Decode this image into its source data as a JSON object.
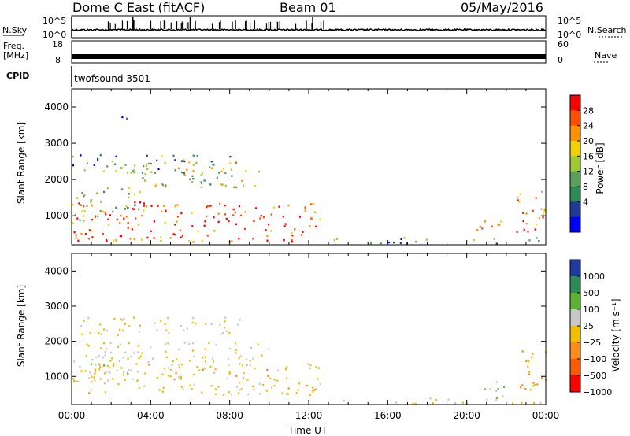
{
  "header": {
    "radar": "Dome C East (fitACF)",
    "beam": "Beam 01",
    "date": "05/May/2016"
  },
  "strip_labels": {
    "nsky": "N.Sky",
    "nsky_hi": "10^5",
    "nsky_lo": "10^0",
    "nsearch": "N.Search",
    "nsearch_hi": "10^5",
    "nsearch_lo": "10^0",
    "freq_line1": "Freq.",
    "freq_line2": "[MHz]",
    "freq_hi": "18",
    "freq_lo": "8",
    "nave": "Nave",
    "nave_hi": "60",
    "nave_lo": "0",
    "cpid": "CPID",
    "cpid_name": "twofsound 3501"
  },
  "panels": {
    "power": {
      "ylabel": "Slant Range [km]",
      "cbar_label": "Power [dB]",
      "cbar_ticks": [
        "28",
        "24",
        "20",
        "16",
        "12",
        "8",
        "4"
      ]
    },
    "velocity": {
      "ylabel": "Slant Range [km]",
      "cbar_label": "Velocity [m s⁻¹]",
      "cbar_ticks": [
        "1000",
        "500",
        "100",
        "25",
        "−25",
        "−100",
        "−500",
        "−1000"
      ]
    }
  },
  "xaxis": {
    "label": "Time UT",
    "ticks": [
      "00:00",
      "04:00",
      "08:00",
      "12:00",
      "16:00",
      "20:00",
      "00:00"
    ]
  },
  "chart_data": [
    {
      "type": "heatmap",
      "title": "Power",
      "x_unit": "hours UT",
      "xlim": [
        0,
        24
      ],
      "ylim": [
        200,
        4500
      ],
      "yticks": [
        1000,
        2000,
        3000,
        4000
      ],
      "ylabel": "Slant Range [km]",
      "colorbar": {
        "label": "Power [dB]",
        "range": [
          0,
          30
        ],
        "ticks": [
          4,
          8,
          12,
          16,
          20,
          24,
          28
        ]
      },
      "colors": [
        "#0000ff",
        "#1e3c96",
        "#2e8b57",
        "#5aa05a",
        "#a0c832",
        "#f0d000",
        "#ff9000",
        "#ff5000",
        "#ff0000"
      ],
      "regions": [
        {
          "t0": 0.0,
          "t1": 12.6,
          "r0": 300,
          "r1": 1400,
          "level": 26
        },
        {
          "t0": 0.0,
          "t1": 3.5,
          "r0": 900,
          "r1": 1800,
          "level": 14
        },
        {
          "t0": 0.0,
          "t1": 8.5,
          "r0": 2200,
          "r1": 2700,
          "level": 10
        },
        {
          "t0": 3.0,
          "t1": 9.5,
          "r0": 1800,
          "r1": 2500,
          "level": 16
        },
        {
          "t0": 2.5,
          "t1": 3.0,
          "r0": 3600,
          "r1": 4000,
          "level": 8
        },
        {
          "t0": 20.5,
          "t1": 22.0,
          "r0": 400,
          "r1": 900,
          "level": 18
        },
        {
          "t0": 22.5,
          "t1": 24.0,
          "r0": 500,
          "r1": 1800,
          "level": 22
        },
        {
          "t0": 12.5,
          "t1": 24.0,
          "r0": 250,
          "r1": 420,
          "level": 10
        }
      ]
    },
    {
      "type": "heatmap",
      "title": "Velocity",
      "x_unit": "hours UT",
      "xlim": [
        0,
        24
      ],
      "ylim": [
        200,
        4500
      ],
      "yticks": [
        1000,
        2000,
        3000,
        4000
      ],
      "ylabel": "Slant Range [km]",
      "colorbar": {
        "label": "Velocity [m s⁻¹]",
        "range": [
          -1200,
          1200
        ],
        "ticks": [
          1000,
          500,
          100,
          25,
          -25,
          -100,
          -500,
          -1000
        ]
      },
      "colors": [
        "#1e3ca0",
        "#2e8b57",
        "#5ab432",
        "#c8c8c8",
        "#f0c000",
        "#ff8c1a",
        "#ff5a00",
        "#ff0000"
      ],
      "regions": [
        {
          "t0": 0.0,
          "t1": 12.6,
          "r0": 500,
          "r1": 1400,
          "level": -100
        },
        {
          "t0": 0.0,
          "t1": 3.5,
          "r0": 900,
          "r1": 1500,
          "level": 100
        },
        {
          "t0": 0.0,
          "t1": 10.0,
          "r0": 1400,
          "r1": 2000,
          "level": 0
        },
        {
          "t0": 0.0,
          "t1": 8.5,
          "r0": 2200,
          "r1": 2700,
          "level": 0
        },
        {
          "t0": 20.5,
          "t1": 22.0,
          "r0": 400,
          "r1": 900,
          "level": 300
        },
        {
          "t0": 22.5,
          "t1": 24.0,
          "r0": 500,
          "r1": 1800,
          "level": -300
        },
        {
          "t0": 12.5,
          "t1": 24.0,
          "r0": 250,
          "r1": 420,
          "level": 0
        }
      ]
    }
  ]
}
